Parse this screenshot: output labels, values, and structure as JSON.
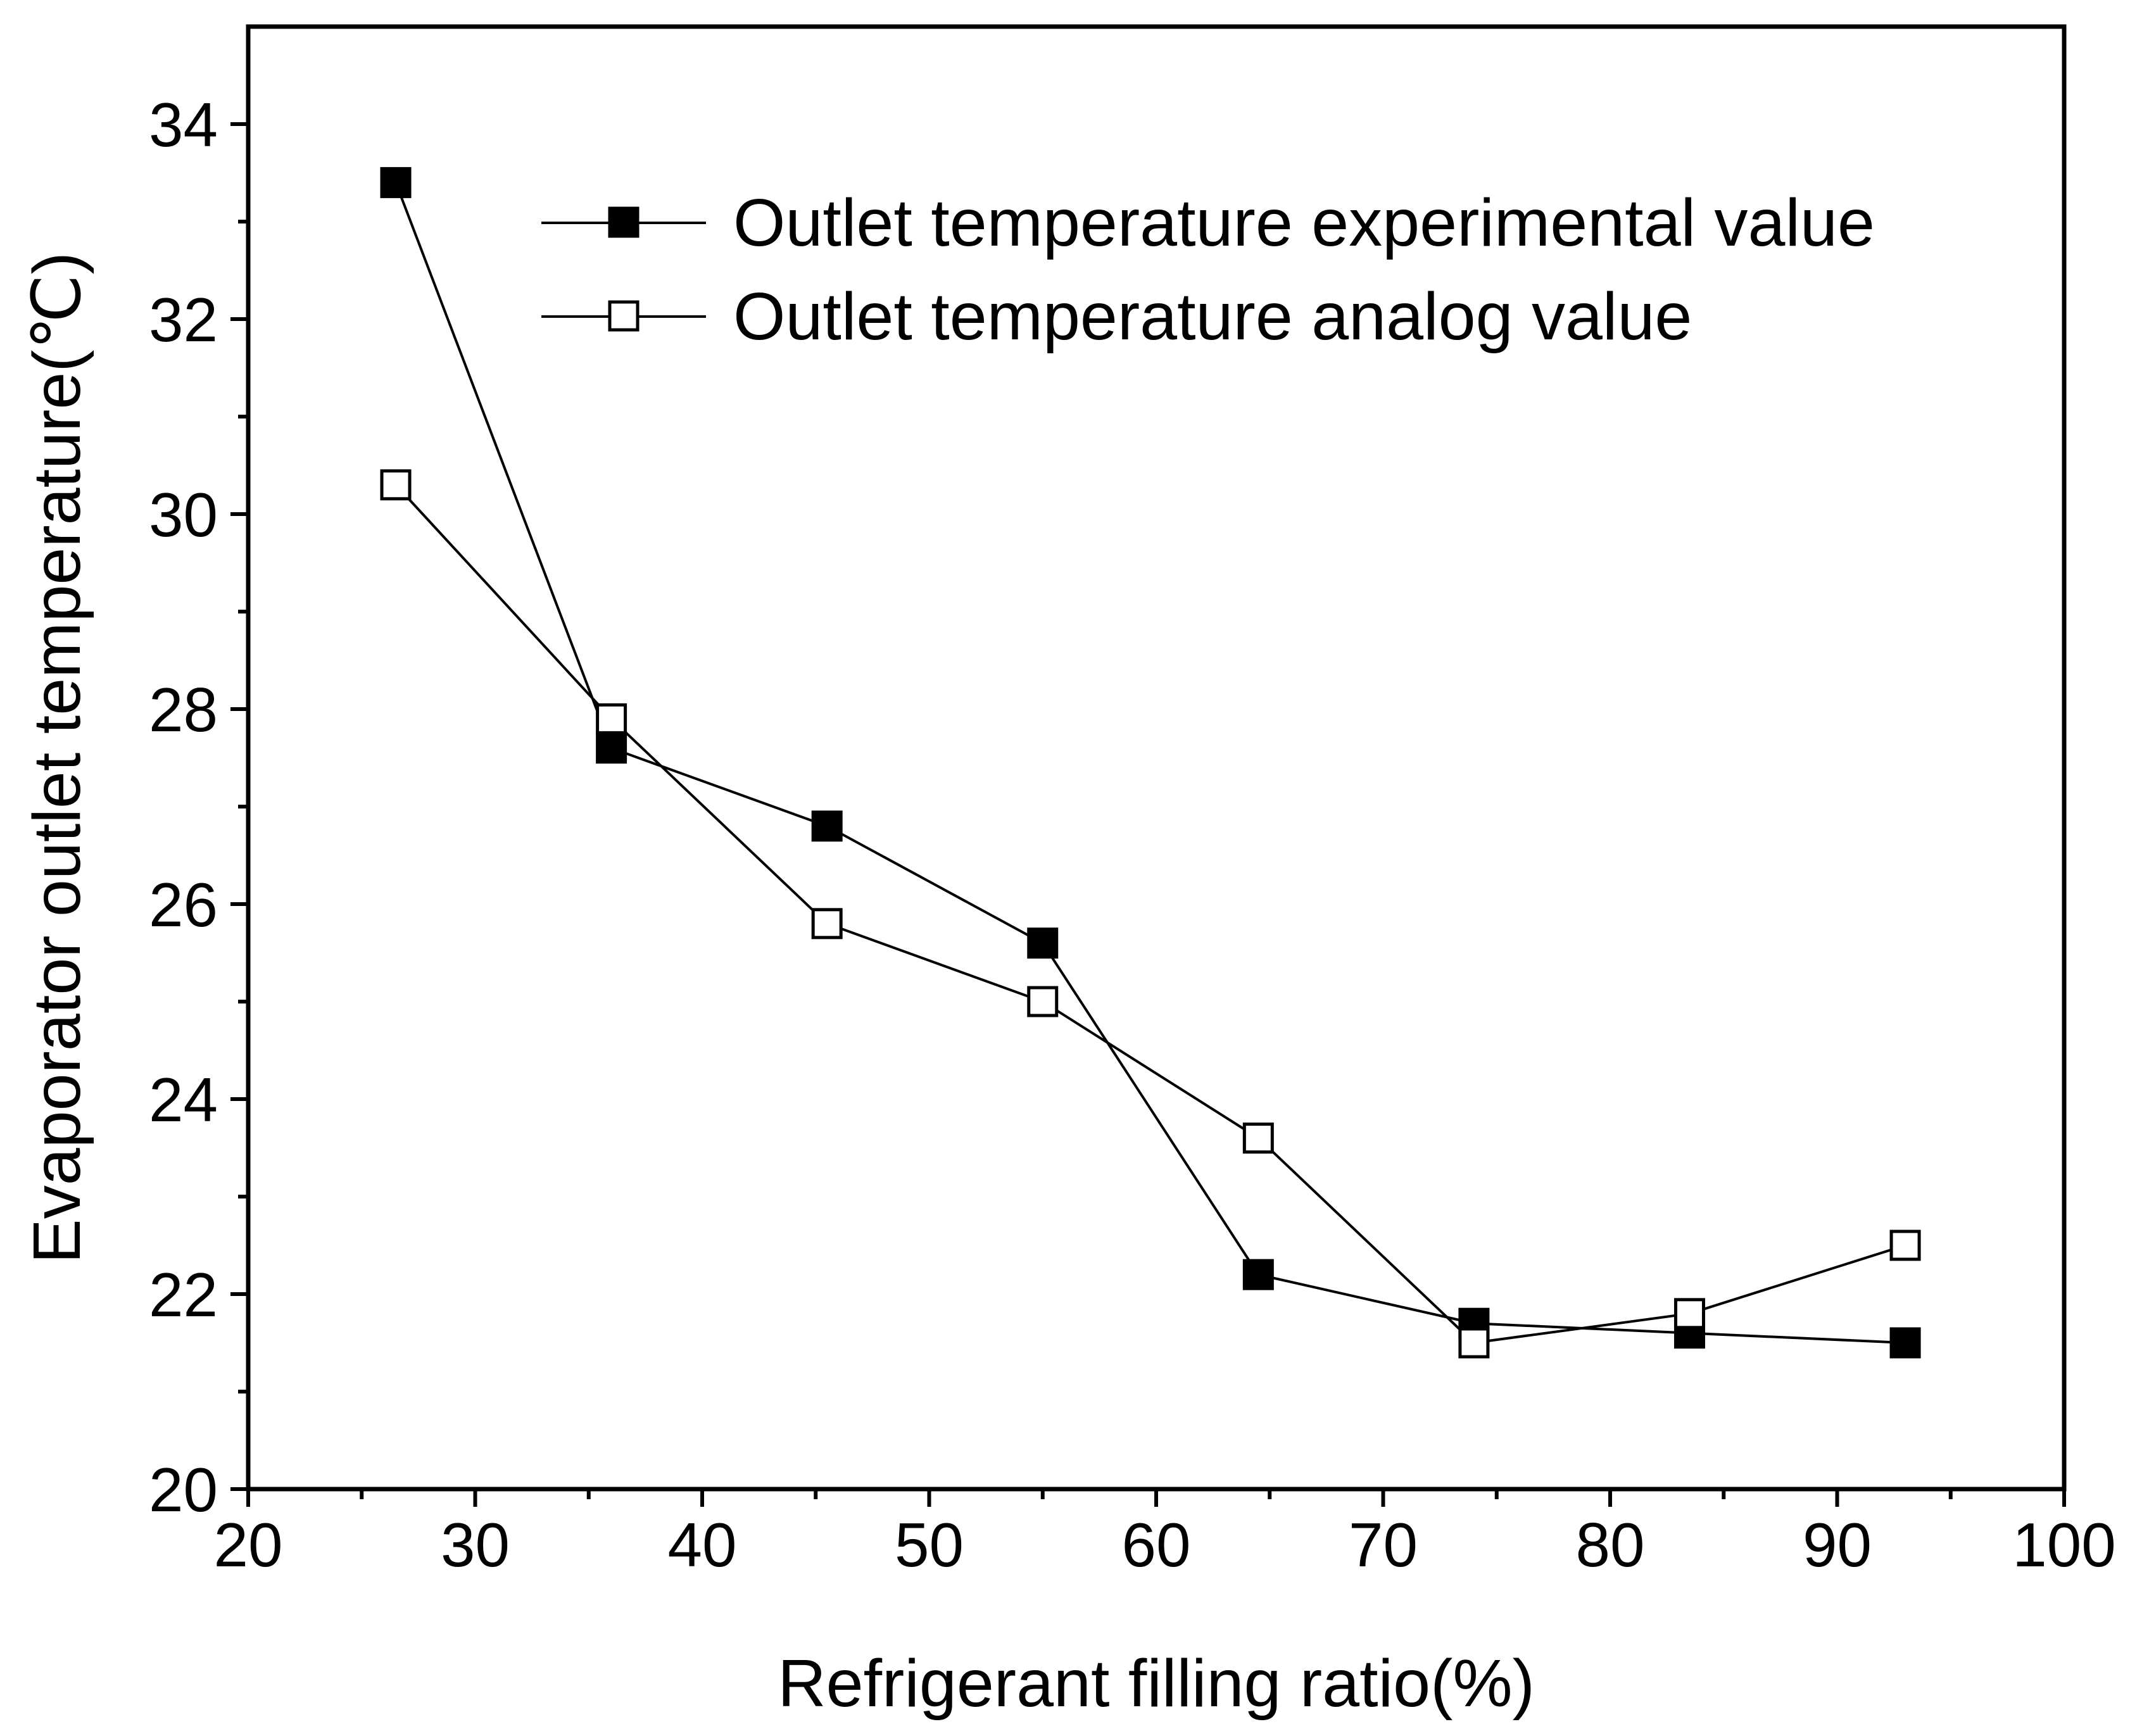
{
  "chart_data": {
    "type": "line",
    "title": "",
    "xlabel": "Refrigerant filling ratio(%)",
    "ylabel": "Evaporator outlet temperature(℃)",
    "xlim": [
      20,
      100
    ],
    "ylim": [
      20,
      35
    ],
    "xticks": [
      20,
      30,
      40,
      50,
      60,
      70,
      80,
      90,
      100
    ],
    "yticks": [
      20,
      22,
      24,
      26,
      28,
      30,
      32,
      34
    ],
    "xtick_labels": [
      "20",
      "30",
      "40",
      "50",
      "60",
      "70",
      "80",
      "90",
      "100"
    ],
    "ytick_labels": [
      "20",
      "22",
      "24",
      "26",
      "28",
      "30",
      "32",
      "34"
    ],
    "x": [
      26.5,
      36,
      45.5,
      55,
      64.5,
      74,
      83.5,
      93
    ],
    "series": [
      {
        "name": "Outlet temperature experimental value",
        "marker": "filled-square",
        "values": [
          33.4,
          27.6,
          26.8,
          25.6,
          22.2,
          21.7,
          21.6,
          21.5
        ]
      },
      {
        "name": "Outlet temperature analog value",
        "marker": "open-square",
        "values": [
          30.3,
          27.9,
          25.8,
          25.0,
          23.6,
          21.5,
          21.8,
          22.5
        ]
      }
    ],
    "legend_position": "top-right",
    "grid": false,
    "colors": {
      "line": "#000000",
      "marker_fill": "#000000",
      "background": "#ffffff"
    }
  }
}
